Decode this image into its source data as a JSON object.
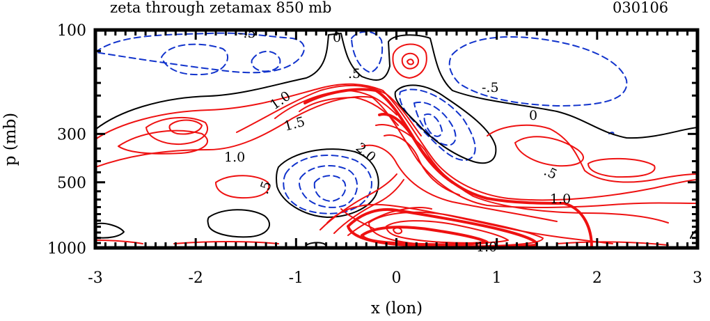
{
  "chart_data": {
    "type": "contour",
    "title": "zeta through zetamax 850 mb",
    "date": "030106",
    "xlabel": "x (lon)",
    "ylabel": "p (mb)",
    "xlim": [
      -3,
      3
    ],
    "ylim": [
      1000,
      100
    ],
    "xticks": [
      "-3",
      "-2",
      "-1",
      "0",
      "1",
      "2",
      "3"
    ],
    "yticks": [
      "100",
      "300",
      "500",
      "1000"
    ],
    "grid": false,
    "legend": "none",
    "colors": {
      "positive": "#ee1111",
      "zero": "#000000",
      "negative": "#1133cc"
    },
    "contour_labels": [
      "-.5",
      "0",
      ".5",
      "-.5",
      "0",
      "1.0",
      "1.5",
      "2.0",
      "1.0",
      ".5",
      ".5",
      "1.0",
      "1.0"
    ],
    "contour_levels": [
      "-1.0",
      "-.5",
      "0",
      ".5",
      "1.0",
      "1.5",
      "2.0",
      "2.5"
    ]
  }
}
